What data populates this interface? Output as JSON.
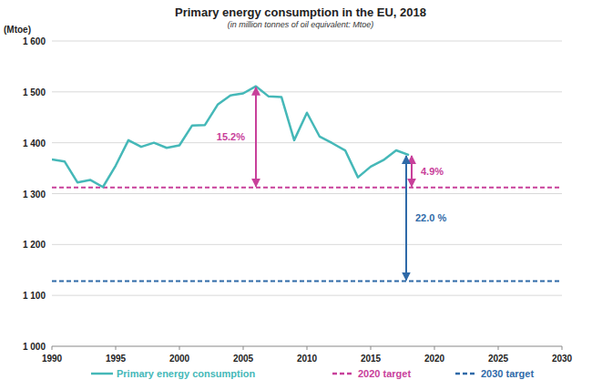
{
  "chart_data": {
    "type": "line",
    "title": "Primary energy consumption in the EU, 2018",
    "subtitle": "(in million tonnes of oil equivalent: Mtoe)",
    "y_label": "(Mtoe)",
    "xlim": [
      1990,
      2030
    ],
    "xticks": [
      1990,
      1995,
      2000,
      2005,
      2010,
      2015,
      2020,
      2025,
      2030
    ],
    "ylim": [
      1000,
      1600
    ],
    "yticks": [
      {
        "value": 1000,
        "label": "1 000"
      },
      {
        "value": 1100,
        "label": "1 100"
      },
      {
        "value": 1200,
        "label": "1 200"
      },
      {
        "value": 1300,
        "label": "1 300"
      },
      {
        "value": 1400,
        "label": "1 400"
      },
      {
        "value": 1500,
        "label": "1 500"
      },
      {
        "value": 1600,
        "label": "1 600"
      }
    ],
    "grid": true,
    "legend": "bottom",
    "series": [
      {
        "name": "Primary energy consumption",
        "color": "#45b8b8",
        "line_style": "solid",
        "x": [
          1990,
          1991,
          1992,
          1993,
          1994,
          1995,
          1996,
          1997,
          1998,
          1999,
          2000,
          2001,
          2002,
          2003,
          2004,
          2005,
          2006,
          2007,
          2008,
          2009,
          2010,
          2011,
          2012,
          2013,
          2014,
          2015,
          2016,
          2017,
          2018
        ],
        "values": [
          1367,
          1363,
          1322,
          1327,
          1313,
          1355,
          1405,
          1392,
          1400,
          1390,
          1395,
          1434,
          1435,
          1475,
          1493,
          1497,
          1511,
          1491,
          1490,
          1405,
          1459,
          1412,
          1399,
          1385,
          1332,
          1353,
          1366,
          1385,
          1376
        ]
      },
      {
        "name": "2020 target",
        "color": "#c8409a",
        "line_style": "dashed",
        "x": [
          1990,
          2030
        ],
        "values": [
          1312,
          1312
        ]
      },
      {
        "name": "2030 target",
        "color": "#2f6aa8",
        "line_style": "dashed",
        "x": [
          1990,
          2030
        ],
        "values": [
          1128,
          1128
        ]
      }
    ],
    "annotations": [
      {
        "text": "15.2%",
        "x": 2006,
        "y1": 1511,
        "y2": 1312,
        "color": "#c8409a"
      },
      {
        "text": "4.9%",
        "x": 2018,
        "y1": 1376,
        "y2": 1312,
        "color": "#c8409a"
      },
      {
        "text": "22.0 %",
        "x": 2018,
        "y1": 1376,
        "y2": 1128,
        "color": "#2f6aa8"
      }
    ]
  }
}
